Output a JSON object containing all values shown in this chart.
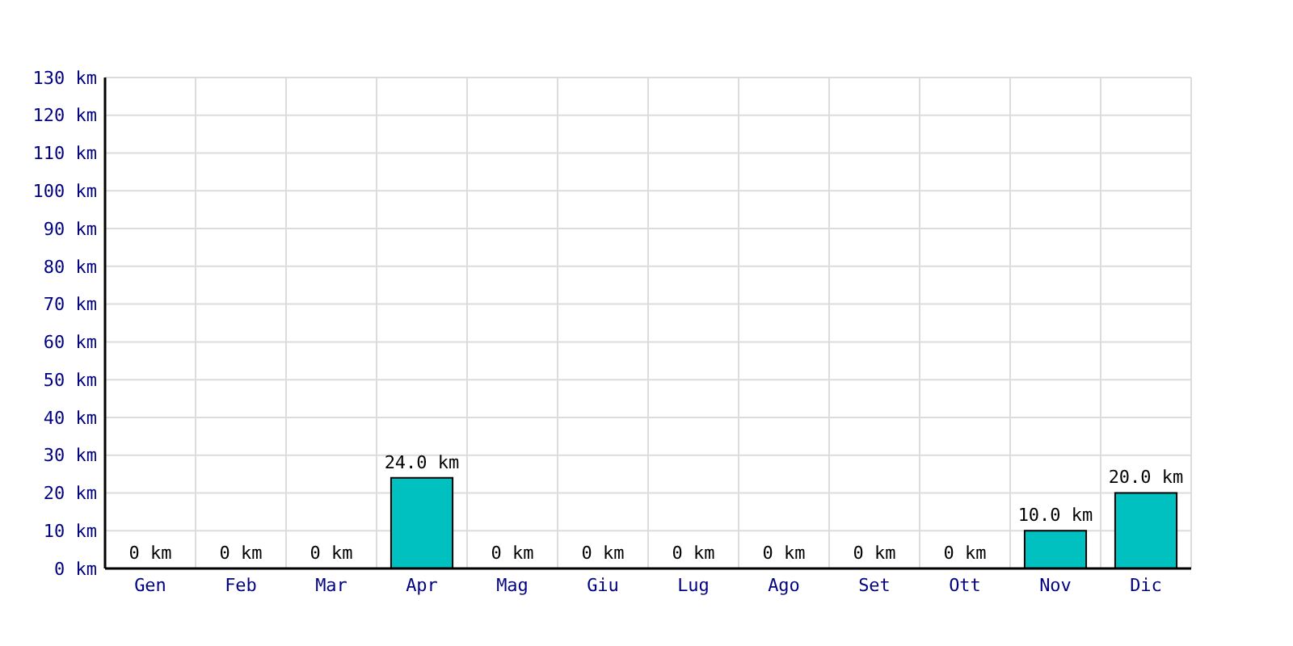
{
  "chart_data": {
    "type": "bar",
    "categories": [
      "Gen",
      "Feb",
      "Mar",
      "Apr",
      "Mag",
      "Giu",
      "Lug",
      "Ago",
      "Set",
      "Ott",
      "Nov",
      "Dic"
    ],
    "values": [
      0,
      0,
      0,
      24,
      0,
      0,
      0,
      0,
      0,
      0,
      10,
      20
    ],
    "value_labels": [
      "0 km",
      "0 km",
      "0 km",
      "24.0 km",
      "0 km",
      "0 km",
      "0 km",
      "0 km",
      "0 km",
      "0 km",
      "10.0 km",
      "20.0 km"
    ],
    "color": "#00c0c0",
    "ylim": [
      0,
      130
    ],
    "yticks": [
      {
        "value": 0,
        "label": "0 km"
      },
      {
        "value": 10,
        "label": "10 km"
      },
      {
        "value": 20,
        "label": "20 km"
      },
      {
        "value": 30,
        "label": "30 km"
      },
      {
        "value": 40,
        "label": "40 km"
      },
      {
        "value": 50,
        "label": "50 km"
      },
      {
        "value": 60,
        "label": "60 km"
      },
      {
        "value": 70,
        "label": "70 km"
      },
      {
        "value": 80,
        "label": "80 km"
      },
      {
        "value": 90,
        "label": "90 km"
      },
      {
        "value": 100,
        "label": "100 km"
      },
      {
        "value": 110,
        "label": "110 km"
      },
      {
        "value": 120,
        "label": "120 km"
      },
      {
        "value": 130,
        "label": "130 km"
      }
    ],
    "grid": true
  }
}
